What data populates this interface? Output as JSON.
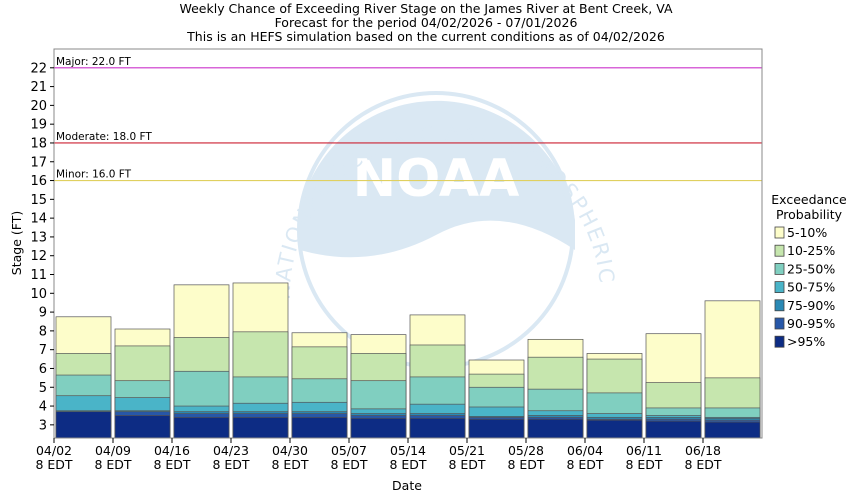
{
  "chart_data": {
    "type": "bar",
    "title": [
      "Weekly Chance of Exceeding River Stage on the James River at Bent Creek, VA",
      "Forecast for the period 04/02/2026 - 07/01/2026",
      "This is an HEFS simulation based on the current conditions as of 04/02/2026"
    ],
    "xlabel": "Date",
    "ylabel": "Stage (FT)",
    "ylim": [
      2.3,
      23
    ],
    "yticks": [
      3,
      4,
      5,
      6,
      7,
      8,
      9,
      10,
      11,
      12,
      13,
      14,
      15,
      16,
      17,
      18,
      19,
      20,
      21,
      22
    ],
    "x_ticks": [
      {
        "line1": "04/02",
        "line2": "8 EDT"
      },
      {
        "line1": "04/09",
        "line2": "8 EDT"
      },
      {
        "line1": "04/16",
        "line2": "8 EDT"
      },
      {
        "line1": "04/23",
        "line2": "8 EDT"
      },
      {
        "line1": "04/30",
        "line2": "8 EDT"
      },
      {
        "line1": "05/07",
        "line2": "8 EDT"
      },
      {
        "line1": "05/14",
        "line2": "8 EDT"
      },
      {
        "line1": "05/21",
        "line2": "8 EDT"
      },
      {
        "line1": "05/28",
        "line2": "8 EDT"
      },
      {
        "line1": "06/04",
        "line2": "8 EDT"
      },
      {
        "line1": "06/11",
        "line2": "8 EDT"
      },
      {
        "line1": "06/18",
        "line2": "8 EDT"
      }
    ],
    "legend": {
      "title_line1": "Exceedance",
      "title_line2": "Probability",
      "placement": "right"
    },
    "series": [
      {
        "name": ">95%",
        "color": "#0d2c84",
        "values": [
          3.7,
          3.5,
          3.4,
          3.4,
          3.4,
          3.35,
          3.35,
          3.3,
          3.3,
          3.25,
          3.2,
          3.15
        ]
      },
      {
        "name": "90-95%",
        "color": "#2757a8",
        "values": [
          3.7,
          3.7,
          3.6,
          3.6,
          3.6,
          3.5,
          3.5,
          3.4,
          3.4,
          3.3,
          3.3,
          3.25
        ]
      },
      {
        "name": "75-90%",
        "color": "#2a89b5",
        "values": [
          3.75,
          3.75,
          3.7,
          3.7,
          3.7,
          3.6,
          3.6,
          3.45,
          3.5,
          3.4,
          3.4,
          3.35
        ]
      },
      {
        "name": "50-75%",
        "color": "#4ab4c8",
        "values": [
          4.55,
          4.45,
          4.0,
          4.15,
          4.2,
          3.85,
          4.1,
          3.95,
          3.75,
          3.6,
          3.5,
          3.4
        ]
      },
      {
        "name": "25-50%",
        "color": "#80cfc0",
        "values": [
          5.65,
          5.35,
          5.85,
          5.55,
          5.45,
          5.35,
          5.55,
          5.0,
          4.9,
          4.7,
          3.9,
          3.9
        ]
      },
      {
        "name": "10-25%",
        "color": "#c6e6ae",
        "values": [
          6.8,
          7.2,
          7.65,
          7.95,
          7.15,
          6.8,
          7.25,
          5.7,
          6.6,
          6.5,
          5.25,
          5.5
        ]
      },
      {
        "name": "5-10%",
        "color": "#fdfdca",
        "values": [
          8.75,
          8.1,
          10.45,
          10.55,
          7.9,
          7.8,
          8.85,
          6.45,
          7.55,
          6.8,
          7.85,
          9.6
        ]
      }
    ],
    "thresholds": [
      {
        "label": "Major: 22.0 FT",
        "value": 22.0,
        "color": "#cc33cc"
      },
      {
        "label": "Moderate: 18.0 FT",
        "value": 18.0,
        "color": "#cc2233"
      },
      {
        "label": "Minor: 16.0 FT",
        "value": 16.0,
        "color": "#e0d060"
      }
    ],
    "grid": false
  }
}
